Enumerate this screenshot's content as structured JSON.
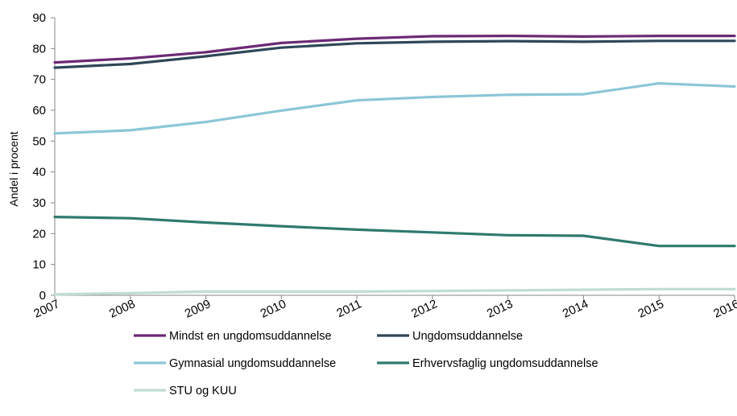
{
  "chart_data": {
    "type": "line",
    "ylabel": "Andel i procent",
    "xlabel": "",
    "title": "",
    "ylim": [
      0,
      90
    ],
    "yticks": [
      0,
      10,
      20,
      30,
      40,
      50,
      60,
      70,
      80,
      90
    ],
    "x": [
      "2007",
      "2008",
      "2009",
      "2010",
      "2011",
      "2012",
      "2013",
      "2014",
      "2015",
      "2016"
    ],
    "grid": false,
    "legend_position": "bottom",
    "series": [
      {
        "name": "Mindst en ungdomsuddannelse",
        "color": "#6b2a74",
        "values": [
          75.5,
          76.8,
          78.8,
          81.8,
          83.2,
          84.0,
          84.1,
          83.9,
          84.1,
          84.1
        ]
      },
      {
        "name": "Ungdomsuddannelse",
        "color": "#2f4758",
        "values": [
          73.8,
          75.0,
          77.5,
          80.3,
          81.7,
          82.2,
          82.4,
          82.2,
          82.5,
          82.5
        ]
      },
      {
        "name": "Gymnasial ungdomsuddannelse",
        "color": "#8cc6d6",
        "values": [
          52.5,
          53.5,
          56.2,
          59.9,
          63.2,
          64.3,
          65.0,
          65.2,
          68.7,
          67.7
        ]
      },
      {
        "name": "Erhvervsfaglig ungdomsuddannelse",
        "color": "#2e7a6e",
        "values": [
          25.4,
          25.0,
          23.6,
          22.4,
          21.3,
          20.4,
          19.5,
          19.3,
          16.0,
          16.0
        ]
      },
      {
        "name": "STU og KUU",
        "color": "#c0dcd6",
        "values": [
          0.3,
          0.7,
          1.2,
          1.2,
          1.2,
          1.4,
          1.6,
          1.8,
          2.0,
          2.0
        ]
      }
    ]
  }
}
